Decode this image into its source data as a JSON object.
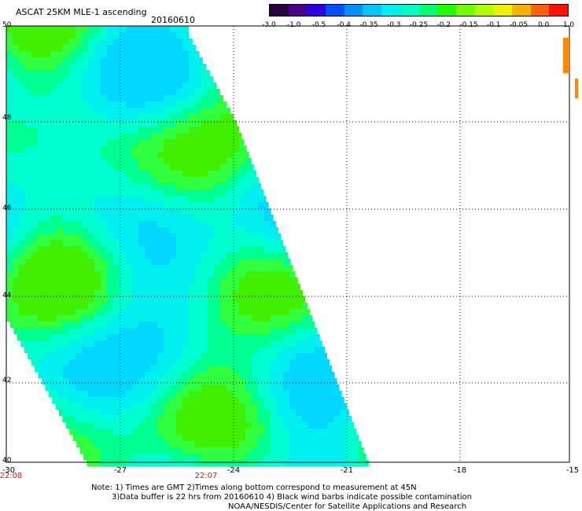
{
  "title": "ASCAT 25KM MLE-1 ascending",
  "date": "20160610",
  "colorbar": {
    "colors": [
      "#2a0040",
      "#4a008a",
      "#2c00e0",
      "#0050ff",
      "#0090ff",
      "#00c8ff",
      "#00f0f0",
      "#00ffc0",
      "#00ff70",
      "#20ff00",
      "#70ff00",
      "#b0ff00",
      "#f0f000",
      "#ffb000",
      "#ff6000",
      "#ff1000"
    ],
    "labels": [
      "-3.0",
      "-1.0",
      "-0.5",
      "-0.4",
      "-0.35",
      "-0.3",
      "-0.25",
      "-0.2",
      "-0.15",
      "-0.1",
      "-0.05",
      "0.0",
      "1.0"
    ]
  },
  "map": {
    "lat_labels": [
      "50",
      "48",
      "46",
      "44",
      "42",
      "40"
    ],
    "lon_labels": [
      "-30",
      "-27",
      "-24",
      "-21",
      "-18",
      "-15"
    ],
    "time_labels": [
      "22:08",
      "22:07"
    ]
  },
  "notes": [
    "Note: 1) Times are GMT 2)Times along bottom correspond to measurement at 45N",
    "3)Data buffer is 22 hrs from 20160610 4) Black wind barbs indicate possible contamination",
    "NOAA/NESDIS/Center for Satellite Applications and Research"
  ]
}
